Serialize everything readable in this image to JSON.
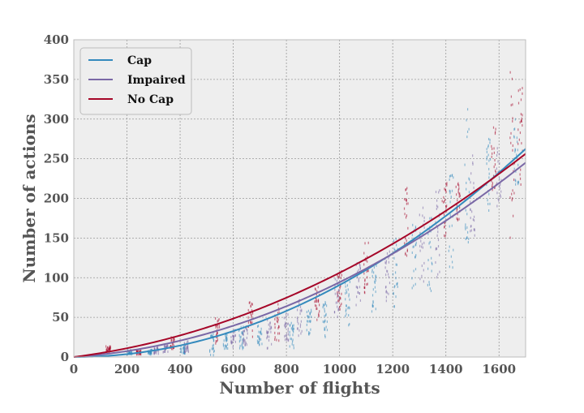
{
  "chart_data": {
    "type": "scatter",
    "title": "",
    "xlabel": "Number of flights",
    "ylabel": "Number of actions",
    "xlim": [
      0,
      1700
    ],
    "ylim": [
      0,
      400
    ],
    "x_ticks": [
      0,
      200,
      400,
      600,
      800,
      1000,
      1200,
      1400,
      1600
    ],
    "y_ticks": [
      0,
      50,
      100,
      150,
      200,
      250,
      300,
      350,
      400
    ],
    "grid": true,
    "legend_position": "top-left",
    "series": [
      {
        "name": "Cap",
        "color": "#348abd",
        "fit_coefficients": [
          9.08e-05,
          0.0
        ]
      },
      {
        "name": "Impaired",
        "color": "#7a68a6",
        "fit_coefficients": [
          7.12e-05,
          0.0231
        ]
      },
      {
        "name": "No Cap",
        "color": "#a60628",
        "fit_coefficients": [
          6.36e-05,
          0.0426
        ]
      }
    ],
    "scatter_clusters": [
      {
        "series": "No Cap",
        "x": 130,
        "y_min": 6,
        "y_max": 14
      },
      {
        "series": "Cap",
        "x": 210,
        "y_min": 3,
        "y_max": 9
      },
      {
        "series": "No Cap",
        "x": 245,
        "y_min": 3,
        "y_max": 8
      },
      {
        "series": "Cap",
        "x": 285,
        "y_min": 3,
        "y_max": 9
      },
      {
        "series": "Impaired",
        "x": 310,
        "y_min": 4,
        "y_max": 12
      },
      {
        "series": "Impaired",
        "x": 345,
        "y_min": 6,
        "y_max": 15
      },
      {
        "series": "No Cap",
        "x": 370,
        "y_min": 10,
        "y_max": 26
      },
      {
        "series": "Cap",
        "x": 410,
        "y_min": 4,
        "y_max": 14
      },
      {
        "series": "Impaired",
        "x": 425,
        "y_min": 6,
        "y_max": 20
      },
      {
        "series": "Cap",
        "x": 520,
        "y_min": 2,
        "y_max": 30
      },
      {
        "series": "No Cap",
        "x": 540,
        "y_min": 15,
        "y_max": 55
      },
      {
        "series": "Cap",
        "x": 570,
        "y_min": 10,
        "y_max": 30
      },
      {
        "series": "Impaired",
        "x": 600,
        "y_min": 12,
        "y_max": 35
      },
      {
        "series": "Cap",
        "x": 630,
        "y_min": 10,
        "y_max": 38
      },
      {
        "series": "Impaired",
        "x": 645,
        "y_min": 15,
        "y_max": 42
      },
      {
        "series": "No Cap",
        "x": 665,
        "y_min": 25,
        "y_max": 70
      },
      {
        "series": "Cap",
        "x": 700,
        "y_min": 15,
        "y_max": 40
      },
      {
        "series": "Impaired",
        "x": 735,
        "y_min": 10,
        "y_max": 50
      },
      {
        "series": "No Cap",
        "x": 765,
        "y_min": 20,
        "y_max": 68
      },
      {
        "series": "Impaired",
        "x": 800,
        "y_min": 20,
        "y_max": 55
      },
      {
        "series": "Cap",
        "x": 820,
        "y_min": 10,
        "y_max": 45
      },
      {
        "series": "Impaired",
        "x": 850,
        "y_min": 25,
        "y_max": 72
      },
      {
        "series": "Cap",
        "x": 885,
        "y_min": 28,
        "y_max": 60
      },
      {
        "series": "No Cap",
        "x": 915,
        "y_min": 45,
        "y_max": 95
      },
      {
        "series": "Cap",
        "x": 945,
        "y_min": 25,
        "y_max": 70
      },
      {
        "series": "Impaired",
        "x": 990,
        "y_min": 50,
        "y_max": 100
      },
      {
        "series": "No Cap",
        "x": 1000,
        "y_min": 60,
        "y_max": 110
      },
      {
        "series": "Cap",
        "x": 1030,
        "y_min": 40,
        "y_max": 95
      },
      {
        "series": "Impaired",
        "x": 1070,
        "y_min": 65,
        "y_max": 120
      },
      {
        "series": "No Cap",
        "x": 1100,
        "y_min": 80,
        "y_max": 145
      },
      {
        "series": "Cap",
        "x": 1130,
        "y_min": 50,
        "y_max": 118
      },
      {
        "series": "Impaired",
        "x": 1180,
        "y_min": 70,
        "y_max": 140
      },
      {
        "series": "Cap",
        "x": 1210,
        "y_min": 60,
        "y_max": 150
      },
      {
        "series": "No Cap",
        "x": 1250,
        "y_min": 110,
        "y_max": 215
      },
      {
        "series": "Cap",
        "x": 1280,
        "y_min": 80,
        "y_max": 170
      },
      {
        "series": "Impaired",
        "x": 1310,
        "y_min": 95,
        "y_max": 190
      },
      {
        "series": "Cap",
        "x": 1340,
        "y_min": 75,
        "y_max": 185
      },
      {
        "series": "Impaired",
        "x": 1370,
        "y_min": 100,
        "y_max": 215
      },
      {
        "series": "No Cap",
        "x": 1395,
        "y_min": 150,
        "y_max": 225
      },
      {
        "series": "Cap",
        "x": 1420,
        "y_min": 110,
        "y_max": 240
      },
      {
        "series": "No Cap",
        "x": 1445,
        "y_min": 170,
        "y_max": 220
      },
      {
        "series": "Cap",
        "x": 1480,
        "y_min": 135,
        "y_max": 320
      },
      {
        "series": "Impaired",
        "x": 1500,
        "y_min": 150,
        "y_max": 260
      },
      {
        "series": "Cap",
        "x": 1560,
        "y_min": 180,
        "y_max": 280
      },
      {
        "series": "No Cap",
        "x": 1580,
        "y_min": 200,
        "y_max": 290
      },
      {
        "series": "Impaired",
        "x": 1600,
        "y_min": 190,
        "y_max": 275
      },
      {
        "series": "No Cap",
        "x": 1650,
        "y_min": 145,
        "y_max": 360
      },
      {
        "series": "Cap",
        "x": 1665,
        "y_min": 200,
        "y_max": 300
      },
      {
        "series": "No Cap",
        "x": 1680,
        "y_min": 210,
        "y_max": 340
      }
    ]
  }
}
